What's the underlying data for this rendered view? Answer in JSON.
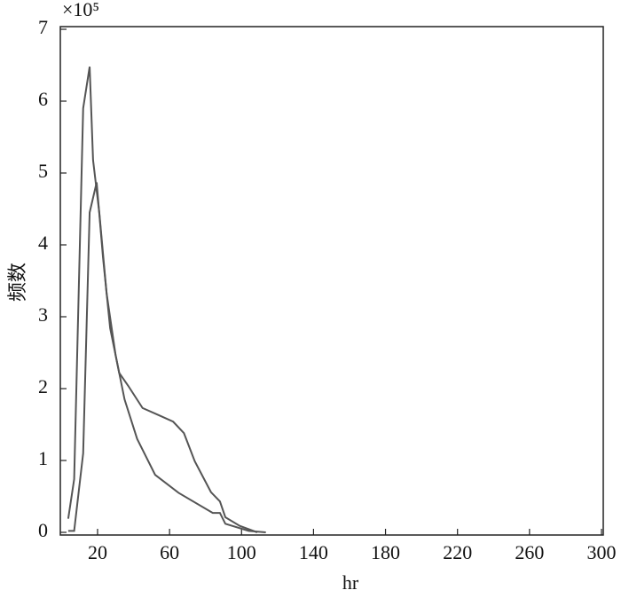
{
  "chart_data": {
    "type": "line",
    "x_label": "hr",
    "y_label": "频数",
    "y_multiplier": "×10⁵",
    "xlim": [
      0,
      300
    ],
    "xticks": [
      20,
      60,
      100,
      140,
      180,
      220,
      260,
      300
    ],
    "ylim": [
      0,
      7
    ],
    "yticks": [
      0,
      1,
      2,
      3,
      4,
      5,
      6,
      7
    ],
    "series": [
      {
        "color": "#555555",
        "x": [
          3.7,
          7,
          12,
          15.6,
          17.5,
          21,
          25,
          30,
          35,
          42,
          52,
          65,
          84,
          88,
          91,
          104,
          113.5
        ],
        "values": [
          0.19,
          0.74,
          5.9,
          6.48,
          5.18,
          4.44,
          3.33,
          2.47,
          1.85,
          1.3,
          0.8,
          0.55,
          0.27,
          0.27,
          0.12,
          0.02,
          0
        ]
      },
      {
        "color": "#555555",
        "x": [
          3.7,
          7,
          12,
          15.6,
          19.5,
          23,
          27,
          32,
          37,
          45,
          54,
          62,
          68,
          74,
          83,
          88,
          91,
          99,
          108.7
        ],
        "values": [
          0.02,
          0.02,
          1.1,
          4.45,
          4.87,
          3.83,
          2.84,
          2.22,
          2.04,
          1.73,
          1.63,
          1.54,
          1.38,
          0.99,
          0.56,
          0.43,
          0.21,
          0.09,
          0
        ]
      }
    ]
  }
}
